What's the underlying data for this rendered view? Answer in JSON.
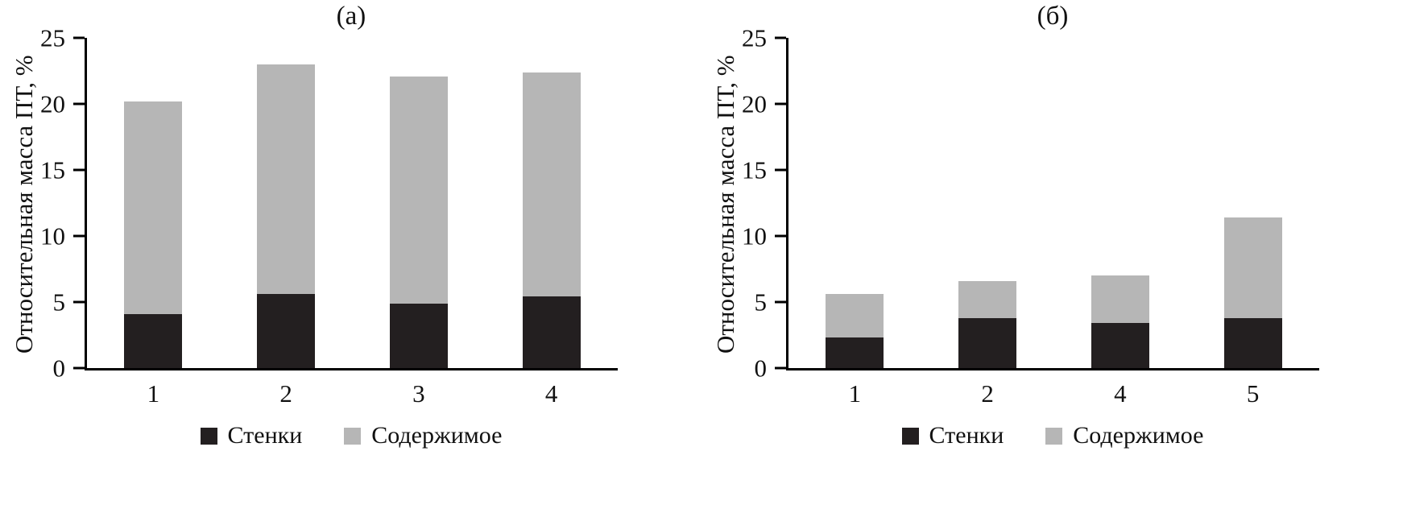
{
  "figure": {
    "background": "#ffffff",
    "bar_black": "#231f20",
    "bar_gray": "#b6b6b6"
  },
  "chart_data": [
    {
      "type": "bar",
      "stacked": true,
      "title": "(а)",
      "ylabel": "Относительная масса ПТ, %",
      "xlabel": "",
      "categories": [
        "1",
        "2",
        "3",
        "4"
      ],
      "series": [
        {
          "name": "Стенки",
          "key": "walls",
          "color": "#231f20",
          "values": [
            4.1,
            5.6,
            4.9,
            5.4
          ]
        },
        {
          "name": "Содержимое",
          "key": "contents",
          "color": "#b6b6b6",
          "values": [
            16.1,
            17.4,
            17.2,
            17.0
          ]
        }
      ],
      "stacked_totals": [
        20.2,
        23.0,
        22.1,
        22.4
      ],
      "ylim": [
        0,
        25
      ],
      "yticks": [
        0,
        5,
        10,
        15,
        20,
        25
      ],
      "grid": false,
      "legend_position": "bottom"
    },
    {
      "type": "bar",
      "stacked": true,
      "title": "(б)",
      "ylabel": "Относительная масса ПТ, %",
      "xlabel": "",
      "categories": [
        "1",
        "2",
        "4",
        "5"
      ],
      "series": [
        {
          "name": "Стенки",
          "key": "walls",
          "color": "#231f20",
          "values": [
            2.3,
            3.8,
            3.4,
            3.8
          ]
        },
        {
          "name": "Содержимое",
          "key": "contents",
          "color": "#b6b6b6",
          "values": [
            3.3,
            2.8,
            3.6,
            7.6
          ]
        }
      ],
      "stacked_totals": [
        5.6,
        6.6,
        7.0,
        11.4
      ],
      "ylim": [
        0,
        25
      ],
      "yticks": [
        0,
        5,
        10,
        15,
        20,
        25
      ],
      "grid": false,
      "legend_position": "bottom"
    }
  ]
}
